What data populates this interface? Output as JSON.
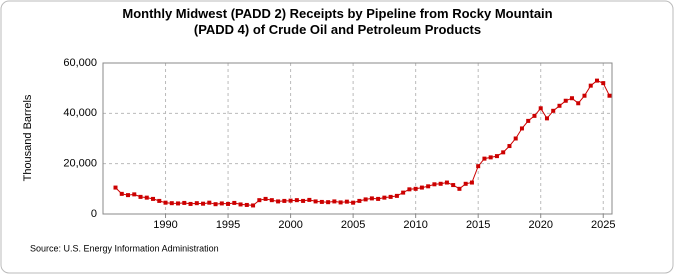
{
  "chart_data": {
    "type": "line",
    "title": "Monthly Midwest (PADD 2) Receipts by Pipeline from Rocky Mountain (PADD 4) of Crude Oil and Petroleum Products",
    "ylabel": "Thousand Barrels",
    "source": "Source: U.S. Energy Information Administration",
    "x": [
      1986.0,
      1986.5,
      1987.0,
      1987.5,
      1988.0,
      1988.5,
      1989.0,
      1989.5,
      1990.0,
      1990.5,
      1991.0,
      1991.5,
      1992.0,
      1992.5,
      1993.0,
      1993.5,
      1994.0,
      1994.5,
      1995.0,
      1995.5,
      1996.0,
      1996.5,
      1997.0,
      1997.5,
      1998.0,
      1998.5,
      1999.0,
      1999.5,
      2000.0,
      2000.5,
      2001.0,
      2001.5,
      2002.0,
      2002.5,
      2003.0,
      2003.5,
      2004.0,
      2004.5,
      2005.0,
      2005.5,
      2006.0,
      2006.5,
      2007.0,
      2007.5,
      2008.0,
      2008.5,
      2009.0,
      2009.5,
      2010.0,
      2010.5,
      2011.0,
      2011.5,
      2012.0,
      2012.5,
      2013.0,
      2013.5,
      2014.0,
      2014.5,
      2015.0,
      2015.5,
      2016.0,
      2016.5,
      2017.0,
      2017.5,
      2018.0,
      2018.5,
      2019.0,
      2019.5,
      2020.0,
      2020.5,
      2021.0,
      2021.5,
      2022.0,
      2022.5,
      2023.0,
      2023.5,
      2024.0,
      2024.5,
      2025.0,
      2025.5
    ],
    "series": [
      {
        "color": "#cc0000",
        "values": [
          10500,
          8000,
          7500,
          7800,
          6800,
          6500,
          6000,
          5200,
          4500,
          4300,
          4200,
          4400,
          4000,
          4300,
          4100,
          4500,
          3900,
          4200,
          4000,
          4400,
          3800,
          3600,
          3400,
          5500,
          6000,
          5500,
          5000,
          5200,
          5300,
          5500,
          5200,
          5600,
          5000,
          4800,
          4700,
          5000,
          4600,
          4900,
          4500,
          5200,
          5800,
          6200,
          6000,
          6500,
          6800,
          7200,
          8500,
          9800,
          10000,
          10500,
          11000,
          11800,
          12000,
          12500,
          11500,
          10000,
          12000,
          12500,
          19000,
          22000,
          22500,
          23000,
          24500,
          27000,
          30000,
          34000,
          37000,
          39000,
          42000,
          38000,
          41000,
          43000,
          45000,
          46000,
          44000,
          47000,
          51000,
          53000,
          52000,
          47000
        ]
      }
    ],
    "xlim": [
      1985,
      2025.7
    ],
    "xticks": [
      1990,
      1995,
      2000,
      2005,
      2010,
      2015,
      2020,
      2025
    ],
    "ylim": [
      0,
      60000
    ],
    "yticks": [
      0,
      {
        "value": 20000,
        "label": "20,000"
      },
      {
        "value": 40000,
        "label": "40,000"
      },
      {
        "value": 60000,
        "label": "60,000"
      }
    ],
    "grid": true
  }
}
